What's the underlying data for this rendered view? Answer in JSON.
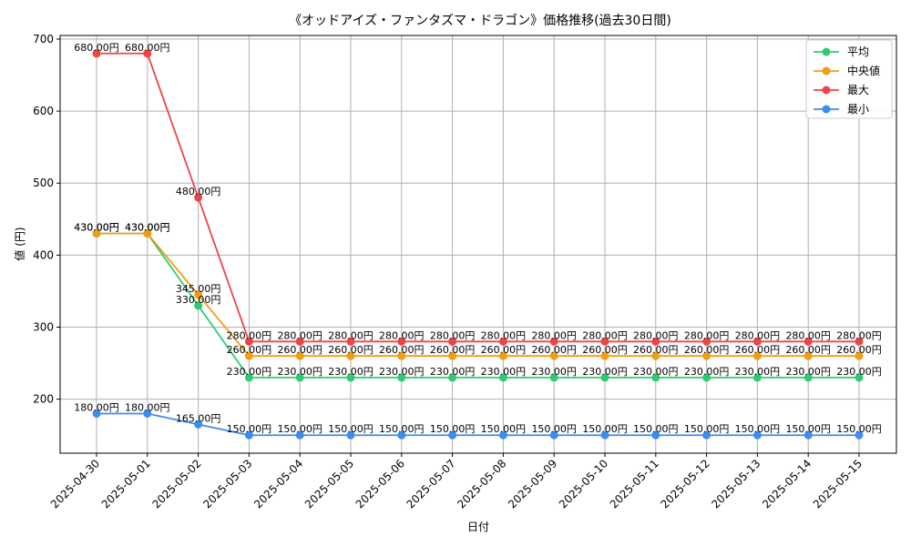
{
  "chart_data": {
    "type": "line",
    "title": "《オッドアイズ・ファンタズマ・ドラゴン》価格推移(過去30日間)",
    "xlabel": "日付",
    "ylabel": "値 (円)",
    "ylim": [
      125,
      705
    ],
    "yticks": [
      200,
      300,
      400,
      500,
      600,
      700
    ],
    "grid": true,
    "legend_position": "top-right",
    "label_suffix": "円",
    "categories": [
      "2025-04-30",
      "2025-05-01",
      "2025-05-02",
      "2025-05-03",
      "2025-05-04",
      "2025-05-05",
      "2025-05-06",
      "2025-05-07",
      "2025-05-08",
      "2025-05-09",
      "2025-05-10",
      "2025-05-11",
      "2025-05-12",
      "2025-05-13",
      "2025-05-14",
      "2025-05-15"
    ],
    "series": [
      {
        "name": "平均",
        "color": "#2ecc71",
        "values": [
          430,
          430,
          330,
          230,
          230,
          230,
          230,
          230,
          230,
          230,
          230,
          230,
          230,
          230,
          230,
          230
        ]
      },
      {
        "name": "中央値",
        "color": "#f39c12",
        "values": [
          430,
          430,
          345,
          260,
          260,
          260,
          260,
          260,
          260,
          260,
          260,
          260,
          260,
          260,
          260,
          260
        ]
      },
      {
        "name": "最大",
        "color": "#ef4444",
        "values": [
          680,
          680,
          480,
          280,
          280,
          280,
          280,
          280,
          280,
          280,
          280,
          280,
          280,
          280,
          280,
          280
        ]
      },
      {
        "name": "最小",
        "color": "#3b8df0",
        "values": [
          180,
          180,
          165,
          150,
          150,
          150,
          150,
          150,
          150,
          150,
          150,
          150,
          150,
          150,
          150,
          150
        ]
      }
    ]
  }
}
